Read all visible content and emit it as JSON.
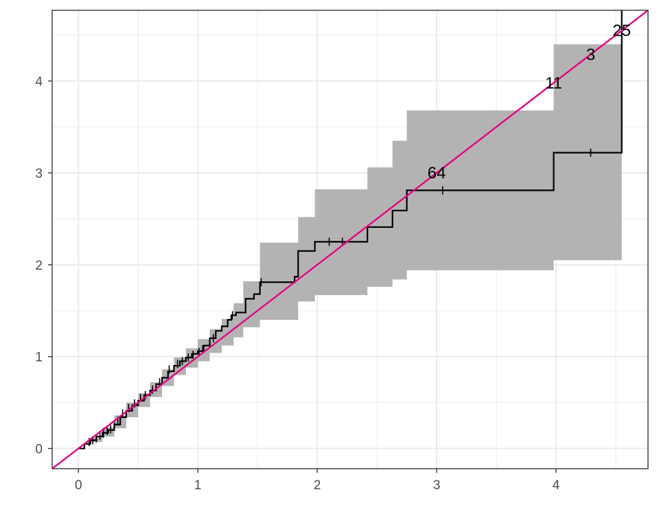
{
  "chart_data": {
    "type": "line",
    "title": "",
    "xlabel": "",
    "ylabel": "",
    "xlim": [
      -0.22,
      4.77
    ],
    "ylim": [
      -0.22,
      4.77
    ],
    "grid": true,
    "legend": "none",
    "x_ticks": [
      0,
      1,
      2,
      3,
      4
    ],
    "x_tick_labels": [
      "0",
      "1",
      "2",
      "3",
      "4"
    ],
    "y_ticks": [
      0,
      1,
      2,
      3,
      4
    ],
    "y_tick_labels": [
      "0",
      "1",
      "2",
      "3",
      "4"
    ],
    "colors": {
      "step_line": "#000000",
      "ci_band": "#b3b3b3",
      "reference_line": "#e6007e",
      "grid": "#ebebeb",
      "panel_border": "#333333",
      "tick_text": "#4d4d4d"
    },
    "step_curve": {
      "x": [
        0,
        0.05,
        0.1,
        0.15,
        0.2,
        0.25,
        0.3,
        0.35,
        0.4,
        0.45,
        0.5,
        0.55,
        0.6,
        0.65,
        0.7,
        0.75,
        0.8,
        0.85,
        0.9,
        0.95,
        1.0,
        1.05,
        1.1,
        1.15,
        1.2,
        1.25,
        1.28,
        1.32,
        1.4,
        1.47,
        1.52,
        1.81,
        1.84,
        1.98,
        2.42,
        2.63,
        2.75,
        3.98,
        4.55
      ],
      "y": [
        0,
        0.05,
        0.09,
        0.13,
        0.17,
        0.2,
        0.26,
        0.34,
        0.41,
        0.47,
        0.52,
        0.58,
        0.63,
        0.7,
        0.77,
        0.84,
        0.9,
        0.95,
        0.99,
        1.03,
        1.06,
        1.12,
        1.2,
        1.28,
        1.33,
        1.4,
        1.45,
        1.48,
        1.63,
        1.68,
        1.81,
        1.87,
        2.15,
        2.25,
        2.41,
        2.59,
        2.81,
        3.22,
        4.77
      ]
    },
    "ci_band": {
      "x": [
        0,
        0.1,
        0.2,
        0.3,
        0.4,
        0.5,
        0.6,
        0.7,
        0.8,
        0.9,
        1.0,
        1.1,
        1.2,
        1.3,
        1.38,
        1.52,
        1.81,
        1.84,
        1.98,
        2.42,
        2.63,
        2.75,
        3.98,
        4.55
      ],
      "lower": [
        0,
        0.07,
        0.13,
        0.22,
        0.34,
        0.45,
        0.56,
        0.68,
        0.8,
        0.88,
        0.95,
        1.04,
        1.12,
        1.21,
        1.32,
        1.4,
        1.4,
        1.6,
        1.67,
        1.76,
        1.84,
        1.94,
        2.05,
        2.05
      ],
      "upper": [
        0,
        0.12,
        0.23,
        0.36,
        0.5,
        0.6,
        0.72,
        0.86,
        0.99,
        1.09,
        1.19,
        1.3,
        1.41,
        1.58,
        1.82,
        2.24,
        2.24,
        2.52,
        2.82,
        3.06,
        3.35,
        3.68,
        4.4,
        4.4
      ]
    },
    "censor_marks": {
      "x": [
        0.09,
        0.12,
        0.15,
        0.18,
        0.21,
        0.24,
        0.27,
        0.3,
        0.33,
        0.37,
        0.42,
        0.47,
        0.52,
        0.56,
        0.62,
        0.68,
        0.76,
        0.83,
        0.87,
        0.92,
        0.96,
        1.01,
        1.04,
        1.13,
        1.29,
        1.53,
        2.1,
        2.21,
        3.05,
        4.29
      ],
      "y": [
        0.07,
        0.09,
        0.11,
        0.14,
        0.16,
        0.19,
        0.21,
        0.24,
        0.3,
        0.38,
        0.44,
        0.49,
        0.55,
        0.58,
        0.64,
        0.72,
        0.86,
        0.92,
        0.95,
        0.99,
        1.02,
        1.05,
        1.08,
        1.2,
        1.45,
        1.81,
        2.25,
        2.25,
        2.81,
        3.22
      ]
    },
    "reference_line": {
      "slope": 1,
      "intercept": 0
    },
    "annotations": [
      {
        "label": "64",
        "x": 3.0,
        "y": 3.0
      },
      {
        "label": "11",
        "x": 3.98,
        "y": 3.98
      },
      {
        "label": "3",
        "x": 4.29,
        "y": 4.29
      },
      {
        "label": "25",
        "x": 4.55,
        "y": 4.55
      }
    ]
  }
}
